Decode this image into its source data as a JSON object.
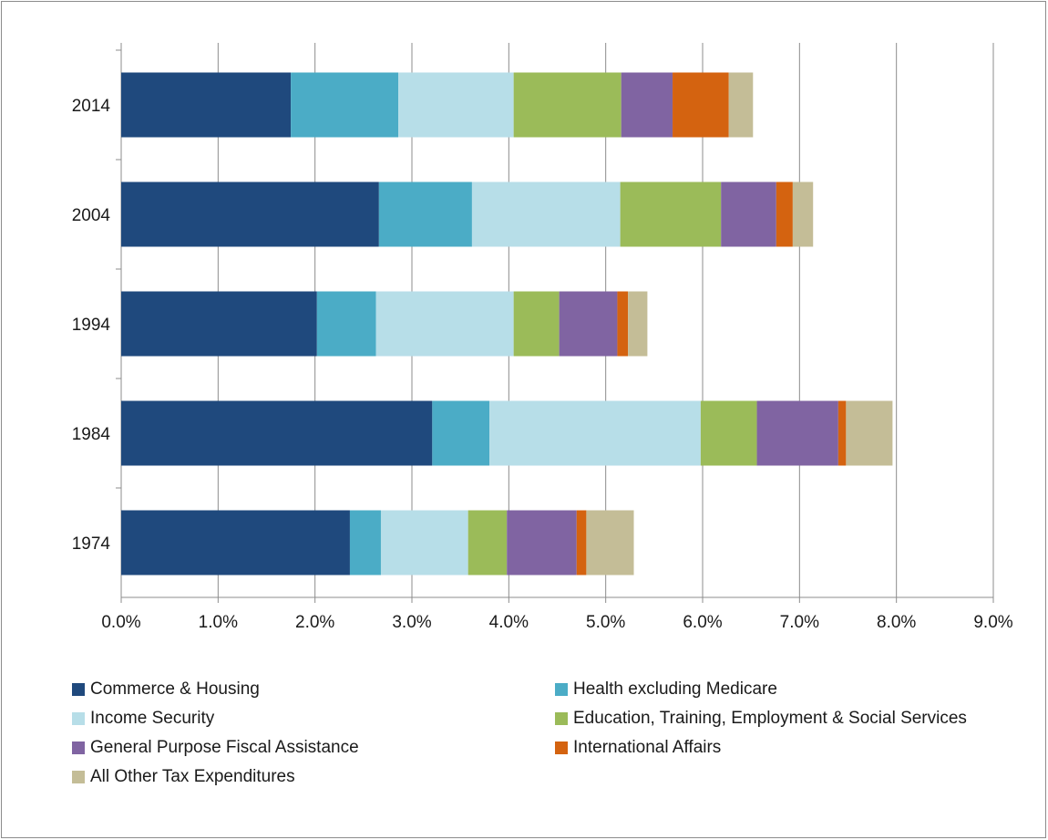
{
  "chart_data": {
    "type": "bar",
    "orientation": "horizontal",
    "stacked": true,
    "title": "",
    "xlabel": "",
    "ylabel": "",
    "categories": [
      "2014",
      "2004",
      "1994",
      "1984",
      "1974"
    ],
    "xlim": [
      0,
      9
    ],
    "xticks": [
      "0.0%",
      "1.0%",
      "2.0%",
      "3.0%",
      "4.0%",
      "5.0%",
      "6.0%",
      "7.0%",
      "8.0%",
      "9.0%"
    ],
    "grid": "vertical",
    "legend_position": "bottom",
    "series": [
      {
        "name": "Commerce & Housing",
        "color": "#1f497d",
        "values": [
          1.75,
          2.66,
          2.02,
          3.21,
          2.36
        ]
      },
      {
        "name": "Health excluding Medicare",
        "color": "#4bacc6",
        "values": [
          1.11,
          0.96,
          0.61,
          0.59,
          0.32
        ]
      },
      {
        "name": "Income Security",
        "color": "#b7dee8",
        "values": [
          1.19,
          1.53,
          1.42,
          2.18,
          0.9
        ]
      },
      {
        "name": "Education, Training, Employment & Social Services",
        "color": "#9bbb59",
        "values": [
          1.11,
          1.04,
          0.47,
          0.58,
          0.4
        ]
      },
      {
        "name": "General Purpose Fiscal Assistance",
        "color": "#8064a2",
        "values": [
          0.53,
          0.57,
          0.6,
          0.84,
          0.72
        ]
      },
      {
        "name": "International Affairs",
        "color": "#d46310",
        "values": [
          0.58,
          0.17,
          0.11,
          0.08,
          0.1
        ]
      },
      {
        "name": "All Other Tax Expenditures",
        "color": "#c4bd97",
        "values": [
          0.25,
          0.21,
          0.2,
          0.48,
          0.49
        ]
      }
    ]
  }
}
